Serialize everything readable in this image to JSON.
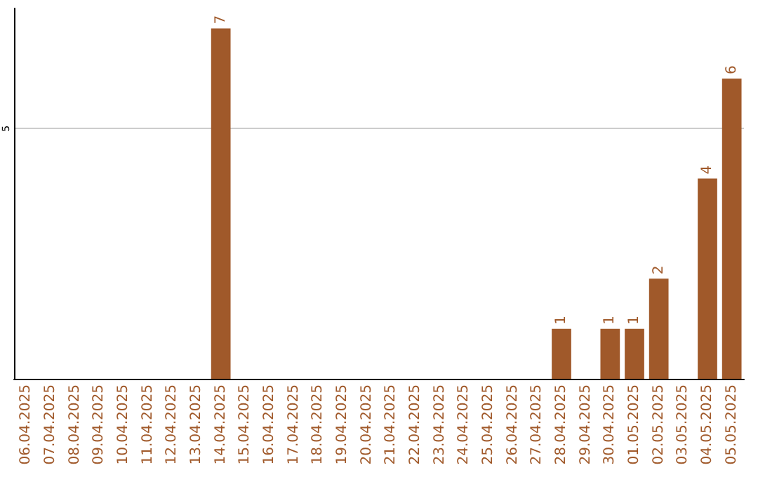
{
  "chart_data": {
    "type": "bar",
    "categories": [
      "06.04.2025",
      "07.04.2025",
      "08.04.2025",
      "09.04.2025",
      "10.04.2025",
      "11.04.2025",
      "12.04.2025",
      "13.04.2025",
      "14.04.2025",
      "15.04.2025",
      "16.04.2025",
      "17.04.2025",
      "18.04.2025",
      "19.04.2025",
      "20.04.2025",
      "21.04.2025",
      "22.04.2025",
      "23.04.2025",
      "24.04.2025",
      "25.04.2025",
      "26.04.2025",
      "27.04.2025",
      "28.04.2025",
      "29.04.2025",
      "30.04.2025",
      "01.05.2025",
      "02.05.2025",
      "03.05.2025",
      "04.05.2025",
      "05.05.2025"
    ],
    "values": [
      null,
      null,
      null,
      null,
      null,
      null,
      null,
      null,
      7,
      null,
      null,
      null,
      null,
      null,
      null,
      null,
      null,
      null,
      null,
      null,
      null,
      null,
      1,
      null,
      1,
      1,
      2,
      null,
      4,
      6
    ],
    "color": "#a0592a",
    "ylim": [
      0,
      7.4
    ],
    "yticks": [
      5
    ],
    "grid": "y",
    "data_labels": true
  }
}
